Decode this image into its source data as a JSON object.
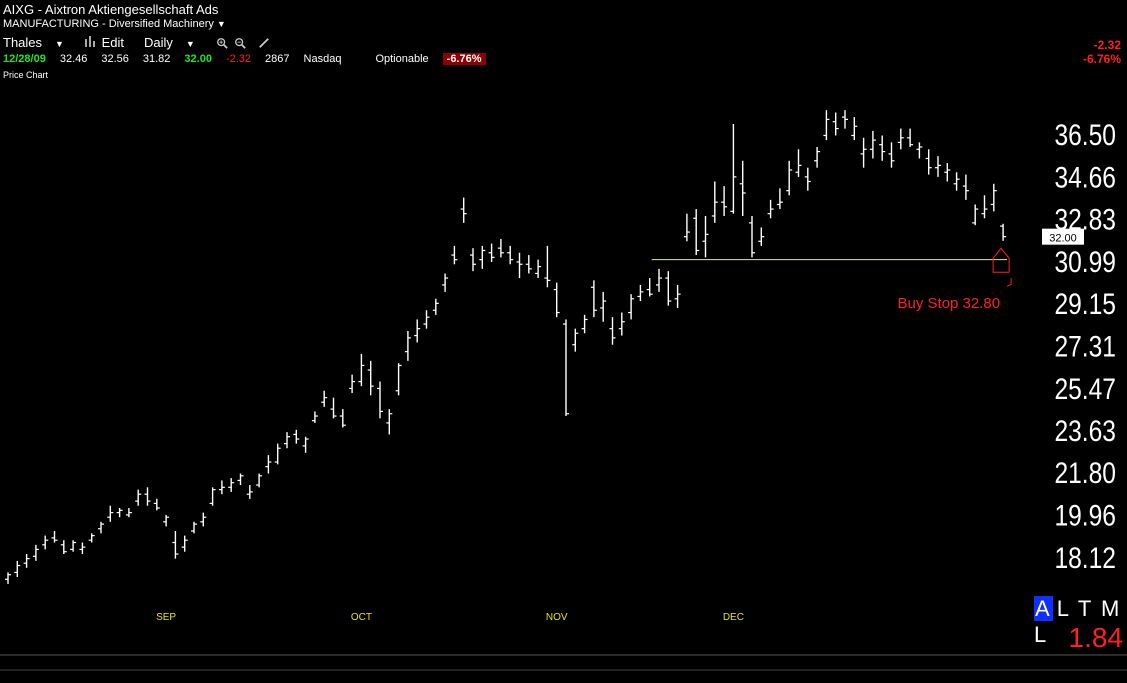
{
  "header": {
    "symbol": "AIXG",
    "separator": " - ",
    "company": "Aixtron Aktiengesellschaft Ads",
    "industry": "MANUFACTURING - Diversified Machinery"
  },
  "toolbar": {
    "user": "Thales",
    "edit": "Edit",
    "interval": "Daily"
  },
  "quote": {
    "date": "12/28/09",
    "open": "32.46",
    "high": "32.56",
    "low": "31.82",
    "close": "32.00",
    "change": "-2.32",
    "volume": "2867",
    "exchange": "Nasdaq",
    "optionable": "Optionable",
    "change_pct": "-6.76%"
  },
  "corner": {
    "change": "-2.32",
    "change_pct": "-6.76%"
  },
  "panel_label": "Price Chart",
  "atml": {
    "a": "A",
    "rest": "L T M L"
  },
  "indicator_value": "1.84",
  "colors": {
    "up": "#ffffff",
    "stop": "#ff2020",
    "support": "#e6e68c",
    "month_label": "#e6e600"
  },
  "chart_data": {
    "type": "bar",
    "subtype": "ohlc",
    "x_labels": [
      "SEP",
      "OCT",
      "NOV",
      "DEC"
    ],
    "x_label_index": [
      17,
      38,
      59,
      78
    ],
    "y_ticks": [
      "36.50",
      "34.66",
      "32.83",
      "30.99",
      "29.15",
      "27.31",
      "25.47",
      "23.63",
      "21.80",
      "19.96",
      "18.12"
    ],
    "ylim": [
      16.2,
      38.9
    ],
    "last_price_label": "32.00",
    "support_level": 31.0,
    "support_from_index": 69,
    "buy_stop_label": "Buy Stop 32.80",
    "buy_stop": 32.8,
    "ohlc": [
      [
        17.1,
        17.4,
        16.9,
        17.3
      ],
      [
        17.4,
        17.9,
        17.2,
        17.7
      ],
      [
        17.8,
        18.2,
        17.6,
        18.0
      ],
      [
        18.1,
        18.6,
        17.9,
        18.4
      ],
      [
        18.6,
        19.0,
        18.4,
        18.8
      ],
      [
        18.9,
        19.2,
        18.7,
        18.8
      ],
      [
        18.6,
        18.8,
        18.2,
        18.3
      ],
      [
        18.4,
        18.8,
        18.3,
        18.7
      ],
      [
        18.4,
        18.7,
        18.2,
        18.5
      ],
      [
        18.8,
        19.1,
        18.7,
        19.0
      ],
      [
        19.3,
        19.6,
        19.1,
        19.5
      ],
      [
        19.8,
        20.3,
        19.6,
        20.0
      ],
      [
        20.0,
        20.2,
        19.8,
        20.1
      ],
      [
        19.9,
        20.2,
        19.8,
        20.0
      ],
      [
        20.5,
        21.0,
        20.3,
        20.8
      ],
      [
        20.8,
        21.1,
        20.3,
        20.5
      ],
      [
        20.4,
        20.6,
        20.1,
        20.2
      ],
      [
        19.6,
        19.9,
        19.4,
        19.8
      ],
      [
        18.7,
        19.2,
        18.0,
        18.2
      ],
      [
        18.5,
        19.0,
        18.3,
        18.8
      ],
      [
        19.2,
        19.6,
        19.1,
        19.5
      ],
      [
        19.6,
        20.0,
        19.4,
        19.8
      ],
      [
        20.4,
        21.1,
        20.3,
        21.0
      ],
      [
        21.0,
        21.4,
        20.8,
        21.1
      ],
      [
        21.1,
        21.5,
        20.9,
        21.3
      ],
      [
        21.4,
        21.7,
        21.2,
        21.6
      ],
      [
        20.8,
        21.2,
        20.6,
        20.9
      ],
      [
        21.2,
        21.7,
        21.1,
        21.6
      ],
      [
        22.0,
        22.5,
        21.7,
        22.2
      ],
      [
        22.2,
        23.0,
        22.1,
        22.8
      ],
      [
        23.0,
        23.5,
        22.8,
        23.3
      ],
      [
        23.4,
        23.6,
        23.0,
        23.2
      ],
      [
        22.9,
        23.3,
        22.6,
        23.2
      ],
      [
        24.0,
        24.4,
        23.9,
        24.2
      ],
      [
        24.8,
        25.3,
        24.6,
        25.0
      ],
      [
        24.5,
        25.0,
        24.1,
        24.2
      ],
      [
        24.2,
        24.5,
        23.7,
        23.8
      ],
      [
        25.4,
        26.0,
        25.2,
        25.7
      ],
      [
        25.7,
        26.9,
        25.5,
        26.4
      ],
      [
        26.2,
        26.6,
        25.1,
        25.5
      ],
      [
        25.4,
        25.7,
        24.1,
        24.4
      ],
      [
        23.9,
        24.5,
        23.4,
        24.3
      ],
      [
        25.3,
        26.5,
        25.1,
        26.4
      ],
      [
        27.0,
        27.9,
        26.6,
        27.6
      ],
      [
        27.7,
        28.4,
        27.4,
        28.0
      ],
      [
        28.2,
        28.8,
        28.0,
        28.5
      ],
      [
        28.8,
        29.3,
        28.6,
        29.1
      ],
      [
        29.9,
        30.4,
        29.6,
        30.2
      ],
      [
        31.2,
        31.6,
        30.8,
        31.0
      ],
      [
        33.2,
        33.7,
        32.6,
        33.0
      ],
      [
        31.2,
        31.5,
        30.5,
        30.8
      ],
      [
        31.0,
        31.6,
        30.6,
        31.4
      ],
      [
        31.3,
        31.7,
        30.9,
        31.1
      ],
      [
        31.5,
        31.9,
        31.1,
        31.3
      ],
      [
        31.3,
        31.6,
        30.8,
        31.0
      ],
      [
        30.9,
        31.3,
        30.2,
        30.8
      ],
      [
        30.8,
        31.2,
        30.4,
        30.6
      ],
      [
        30.4,
        31.0,
        30.2,
        30.7
      ],
      [
        30.2,
        31.6,
        29.8,
        30.1
      ],
      [
        29.7,
        30.0,
        28.5,
        28.7
      ],
      [
        28.2,
        28.4,
        24.2,
        24.3
      ],
      [
        27.3,
        28.0,
        27.0,
        27.8
      ],
      [
        28.0,
        28.6,
        27.8,
        28.4
      ],
      [
        29.8,
        30.1,
        28.5,
        28.8
      ],
      [
        28.9,
        29.6,
        28.3,
        29.2
      ],
      [
        28.0,
        28.5,
        27.3,
        27.6
      ],
      [
        28.0,
        28.7,
        27.7,
        28.3
      ],
      [
        28.7,
        29.5,
        28.4,
        29.3
      ],
      [
        29.4,
        29.9,
        29.2,
        29.6
      ],
      [
        29.7,
        30.2,
        29.4,
        29.5
      ],
      [
        29.9,
        30.6,
        29.6,
        30.2
      ],
      [
        30.2,
        30.5,
        29.0,
        29.2
      ],
      [
        29.3,
        29.9,
        28.9,
        29.5
      ],
      [
        32.0,
        33.0,
        31.8,
        32.2
      ],
      [
        32.8,
        33.2,
        31.2,
        31.4
      ],
      [
        31.8,
        32.9,
        31.1,
        32.1
      ],
      [
        32.9,
        34.4,
        32.6,
        33.5
      ],
      [
        33.5,
        34.2,
        32.9,
        33.3
      ],
      [
        33.1,
        36.9,
        33.0,
        34.6
      ],
      [
        34.3,
        35.3,
        32.9,
        33.9
      ],
      [
        32.6,
        32.9,
        31.1,
        31.3
      ],
      [
        31.8,
        32.4,
        31.6,
        32.0
      ],
      [
        33.0,
        33.6,
        32.8,
        33.2
      ],
      [
        33.4,
        34.1,
        33.2,
        33.5
      ],
      [
        34.0,
        35.3,
        33.8,
        34.9
      ],
      [
        34.8,
        35.8,
        34.6,
        35.1
      ],
      [
        34.6,
        35.0,
        34.0,
        34.4
      ],
      [
        35.3,
        35.9,
        35.0,
        35.7
      ],
      [
        36.4,
        37.5,
        36.2,
        37.1
      ],
      [
        37.0,
        37.4,
        36.4,
        36.7
      ],
      [
        37.2,
        37.5,
        36.7,
        37.1
      ],
      [
        36.4,
        37.2,
        36.2,
        36.8
      ],
      [
        35.6,
        36.3,
        35.0,
        35.8
      ],
      [
        35.8,
        36.6,
        35.4,
        36.2
      ],
      [
        36.0,
        36.4,
        35.3,
        35.7
      ],
      [
        35.6,
        36.1,
        35.0,
        35.3
      ],
      [
        36.1,
        36.7,
        35.8,
        36.3
      ],
      [
        36.3,
        36.7,
        35.9,
        36.0
      ],
      [
        35.8,
        36.1,
        35.4,
        35.9
      ],
      [
        35.4,
        35.8,
        34.7,
        35.0
      ],
      [
        35.0,
        35.5,
        34.6,
        35.1
      ],
      [
        34.8,
        35.2,
        34.4,
        34.9
      ],
      [
        34.3,
        34.8,
        34.0,
        34.5
      ],
      [
        34.2,
        34.7,
        33.6,
        34.0
      ],
      [
        32.6,
        33.4,
        32.5,
        33.2
      ],
      [
        33.0,
        33.8,
        32.8,
        33.2
      ],
      [
        33.4,
        34.3,
        33.1,
        34.0
      ],
      [
        32.46,
        32.56,
        31.82,
        32.0
      ]
    ]
  }
}
